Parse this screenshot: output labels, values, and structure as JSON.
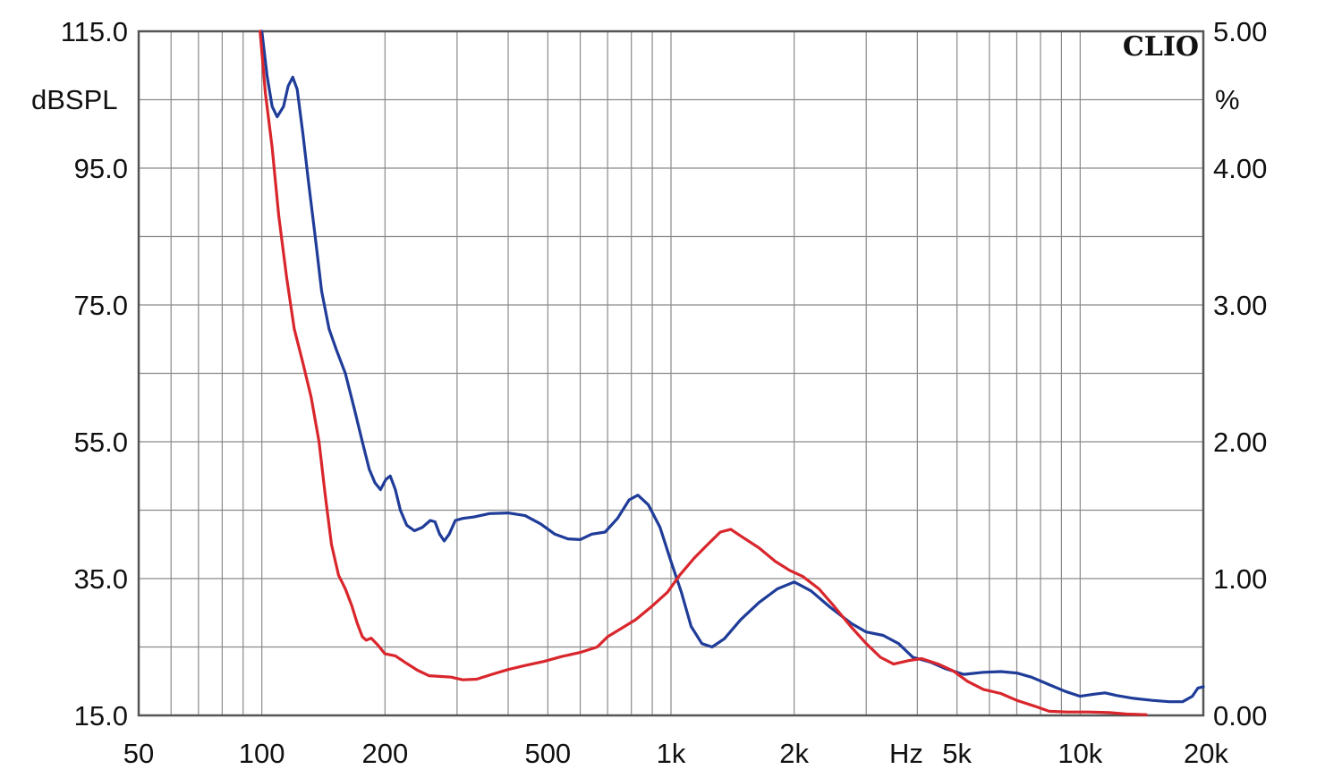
{
  "chart_data": {
    "type": "line",
    "title": "",
    "brand": "CLIO",
    "xscale": "log",
    "xlim": [
      50,
      20000
    ],
    "xlabel": "Hz",
    "x_tick_labels": [
      {
        "v": 50,
        "t": "50"
      },
      {
        "v": 100,
        "t": "100"
      },
      {
        "v": 200,
        "t": "200"
      },
      {
        "v": 500,
        "t": "500"
      },
      {
        "v": 1000,
        "t": "1k"
      },
      {
        "v": 2000,
        "t": "2k"
      },
      {
        "v": 5000,
        "t": "5k"
      },
      {
        "v": 10000,
        "t": "10k"
      },
      {
        "v": 20000,
        "t": "20k"
      }
    ],
    "ylabel_left": "dBSPL",
    "ylim_left": [
      15,
      115
    ],
    "y_left_tick_labels": [
      "15.0",
      "35.0",
      "55.0",
      "75.0",
      "95.0",
      "115.0"
    ],
    "ylabel_right": "%",
    "ylim_right": [
      0,
      5
    ],
    "y_right_tick_labels": [
      "0.00",
      "1.00",
      "2.00",
      "3.00",
      "4.00",
      "5.00"
    ],
    "grid": true,
    "series": [
      {
        "color": "#1f3c99",
        "axis": "left",
        "points": [
          [
            100,
            115.0
          ],
          [
            103,
            108.5
          ],
          [
            106,
            104.0
          ],
          [
            109,
            102.5
          ],
          [
            113,
            104.0
          ],
          [
            116,
            107.0
          ],
          [
            119,
            108.3
          ],
          [
            122,
            106.5
          ],
          [
            126,
            100.0
          ],
          [
            130,
            93.0
          ],
          [
            135,
            85.0
          ],
          [
            140,
            77.0
          ],
          [
            146,
            71.5
          ],
          [
            152,
            68.5
          ],
          [
            160,
            65.0
          ],
          [
            168,
            60.0
          ],
          [
            176,
            55.0
          ],
          [
            183,
            51.0
          ],
          [
            189,
            49.0
          ],
          [
            195,
            48.0
          ],
          [
            201,
            49.5
          ],
          [
            206,
            50.0
          ],
          [
            212,
            48.0
          ],
          [
            218,
            45.0
          ],
          [
            226,
            42.8
          ],
          [
            236,
            42.0
          ],
          [
            247,
            42.5
          ],
          [
            258,
            43.5
          ],
          [
            265,
            43.3
          ],
          [
            272,
            41.5
          ],
          [
            279,
            40.5
          ],
          [
            287,
            41.5
          ],
          [
            297,
            43.5
          ],
          [
            310,
            43.8
          ],
          [
            330,
            44.0
          ],
          [
            360,
            44.5
          ],
          [
            400,
            44.6
          ],
          [
            440,
            44.2
          ],
          [
            480,
            43.0
          ],
          [
            520,
            41.5
          ],
          [
            560,
            40.8
          ],
          [
            600,
            40.7
          ],
          [
            640,
            41.5
          ],
          [
            690,
            41.8
          ],
          [
            740,
            43.8
          ],
          [
            790,
            46.5
          ],
          [
            830,
            47.2
          ],
          [
            880,
            45.8
          ],
          [
            940,
            42.5
          ],
          [
            1000,
            37.5
          ],
          [
            1060,
            33.0
          ],
          [
            1120,
            28.0
          ],
          [
            1190,
            25.5
          ],
          [
            1260,
            25.0
          ],
          [
            1350,
            26.2
          ],
          [
            1480,
            29.0
          ],
          [
            1640,
            31.5
          ],
          [
            1820,
            33.5
          ],
          [
            2000,
            34.5
          ],
          [
            2200,
            33.2
          ],
          [
            2450,
            30.8
          ],
          [
            2750,
            28.5
          ],
          [
            3000,
            27.2
          ],
          [
            3300,
            26.7
          ],
          [
            3600,
            25.5
          ],
          [
            3900,
            23.5
          ],
          [
            4300,
            22.8
          ],
          [
            4700,
            21.8
          ],
          [
            5200,
            21.0
          ],
          [
            5800,
            21.3
          ],
          [
            6400,
            21.4
          ],
          [
            7000,
            21.2
          ],
          [
            7600,
            20.6
          ],
          [
            8400,
            19.5
          ],
          [
            9200,
            18.5
          ],
          [
            10000,
            17.8
          ],
          [
            10800,
            18.1
          ],
          [
            11500,
            18.3
          ],
          [
            12300,
            17.9
          ],
          [
            13500,
            17.5
          ],
          [
            15000,
            17.2
          ],
          [
            16500,
            17.0
          ],
          [
            17800,
            17.0
          ],
          [
            18800,
            17.8
          ],
          [
            19400,
            19.0
          ],
          [
            20000,
            19.2
          ]
        ]
      },
      {
        "color": "#d9262c",
        "axis": "left",
        "points": [
          [
            99,
            115.0
          ],
          [
            102,
            106.0
          ],
          [
            106,
            98.0
          ],
          [
            110,
            88.0
          ],
          [
            115,
            79.0
          ],
          [
            120,
            71.5
          ],
          [
            126,
            66.5
          ],
          [
            132,
            61.5
          ],
          [
            138,
            55.0
          ],
          [
            143,
            47.0
          ],
          [
            148,
            40.0
          ],
          [
            154,
            35.5
          ],
          [
            160,
            33.5
          ],
          [
            166,
            31.0
          ],
          [
            171,
            28.5
          ],
          [
            176,
            26.5
          ],
          [
            180,
            26.0
          ],
          [
            185,
            26.3
          ],
          [
            192,
            25.3
          ],
          [
            200,
            24.0
          ],
          [
            212,
            23.7
          ],
          [
            226,
            22.6
          ],
          [
            240,
            21.6
          ],
          [
            256,
            20.8
          ],
          [
            272,
            20.7
          ],
          [
            290,
            20.6
          ],
          [
            310,
            20.2
          ],
          [
            335,
            20.3
          ],
          [
            365,
            21.0
          ],
          [
            400,
            21.7
          ],
          [
            440,
            22.3
          ],
          [
            490,
            22.9
          ],
          [
            540,
            23.6
          ],
          [
            600,
            24.2
          ],
          [
            660,
            25.0
          ],
          [
            700,
            26.5
          ],
          [
            760,
            27.8
          ],
          [
            820,
            29.0
          ],
          [
            900,
            31.0
          ],
          [
            980,
            33.0
          ],
          [
            1050,
            35.5
          ],
          [
            1140,
            38.0
          ],
          [
            1230,
            40.0
          ],
          [
            1320,
            41.8
          ],
          [
            1400,
            42.2
          ],
          [
            1500,
            41.0
          ],
          [
            1640,
            39.5
          ],
          [
            1800,
            37.5
          ],
          [
            1950,
            36.2
          ],
          [
            2100,
            35.3
          ],
          [
            2300,
            33.5
          ],
          [
            2500,
            31.0
          ],
          [
            2750,
            28.0
          ],
          [
            3000,
            25.5
          ],
          [
            3250,
            23.5
          ],
          [
            3500,
            22.5
          ],
          [
            3800,
            23.0
          ],
          [
            4100,
            23.3
          ],
          [
            4500,
            22.5
          ],
          [
            4900,
            21.5
          ],
          [
            5300,
            20.0
          ],
          [
            5800,
            18.8
          ],
          [
            6400,
            18.2
          ],
          [
            7000,
            17.2
          ],
          [
            7700,
            16.4
          ],
          [
            8400,
            15.6
          ],
          [
            9300,
            15.5
          ],
          [
            10500,
            15.5
          ],
          [
            11800,
            15.4
          ],
          [
            13000,
            15.2
          ],
          [
            14500,
            15.1
          ]
        ]
      }
    ]
  }
}
